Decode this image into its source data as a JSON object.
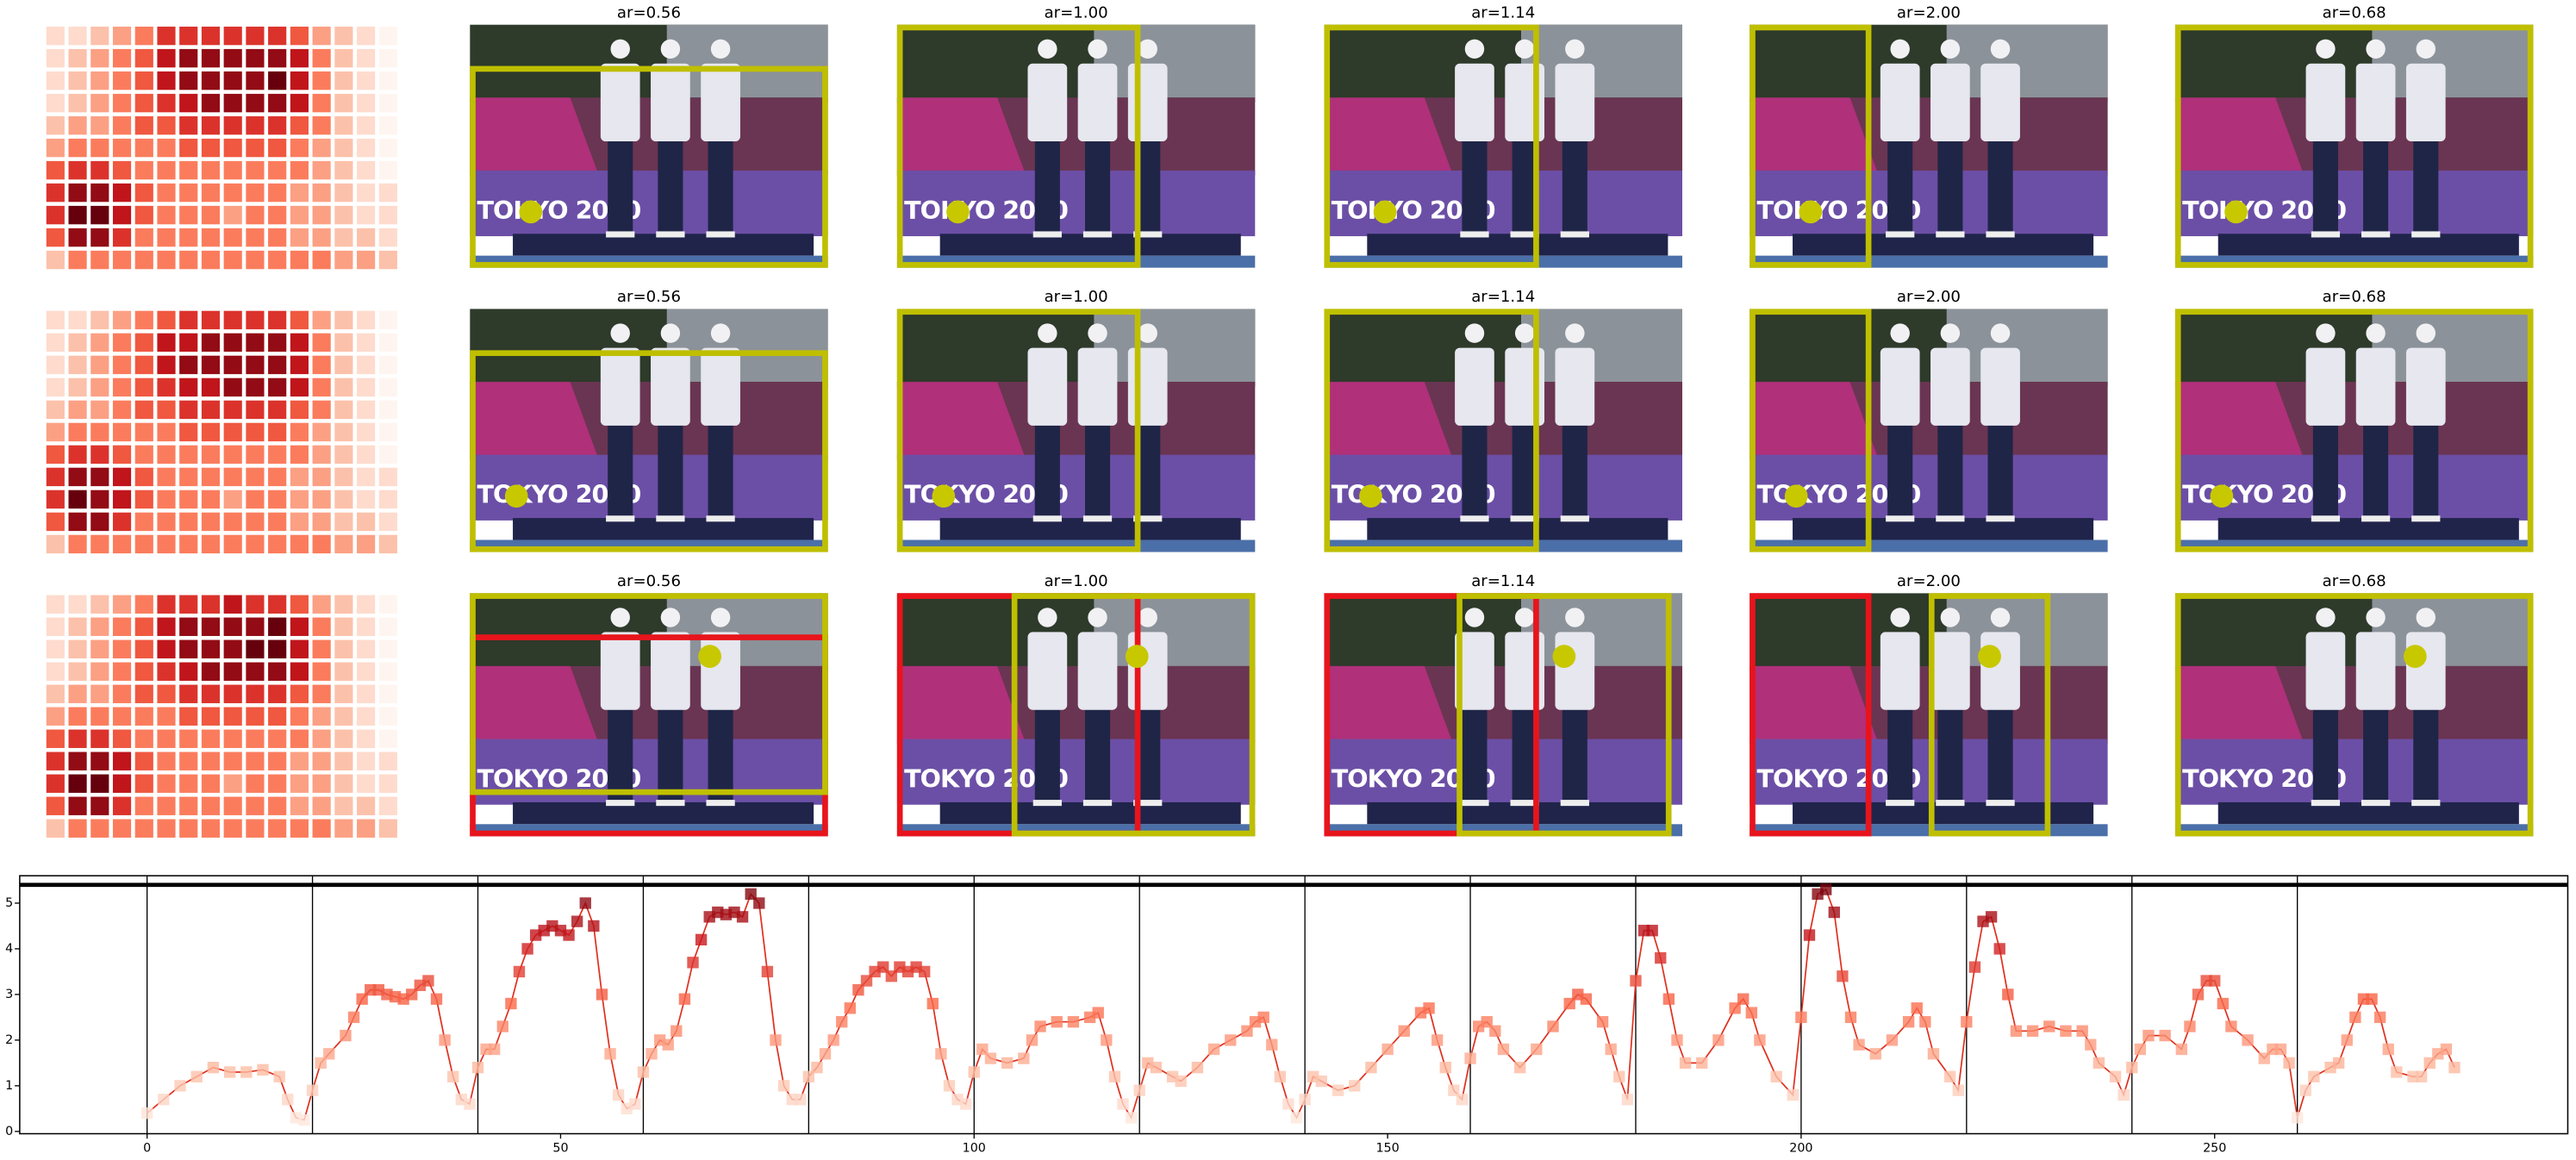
{
  "panel_rows": [
    {
      "titles": [
        "ar=0.56",
        "ar=1.00",
        "ar=1.14",
        "ar=2.00",
        "ar=0.68"
      ]
    },
    {
      "titles": [
        "ar=0.56",
        "ar=1.00",
        "ar=1.14",
        "ar=2.00",
        "ar=0.68"
      ]
    },
    {
      "titles": [
        "ar=0.56",
        "ar=1.00",
        "ar=1.14",
        "ar=2.00",
        "ar=0.68"
      ]
    }
  ],
  "photo_text": "TOKYO 2020",
  "heat_range": [
    0,
    9
  ],
  "heatmaps": [
    [
      [
        1,
        1,
        2,
        3,
        4,
        6,
        6,
        6,
        6,
        6,
        6,
        5,
        3,
        2,
        1,
        0
      ],
      [
        1,
        2,
        3,
        4,
        5,
        7,
        8,
        8,
        8,
        8,
        8,
        7,
        4,
        2,
        1,
        0
      ],
      [
        1,
        2,
        3,
        4,
        5,
        7,
        8,
        8,
        8,
        8,
        9,
        7,
        4,
        2,
        1,
        0
      ],
      [
        1,
        2,
        3,
        4,
        5,
        6,
        7,
        8,
        8,
        8,
        8,
        7,
        4,
        2,
        1,
        0
      ],
      [
        2,
        3,
        3,
        4,
        5,
        5,
        6,
        6,
        6,
        6,
        6,
        5,
        4,
        2,
        1,
        0
      ],
      [
        3,
        4,
        4,
        4,
        4,
        4,
        5,
        5,
        5,
        5,
        5,
        4,
        3,
        2,
        1,
        0
      ],
      [
        5,
        6,
        6,
        5,
        4,
        4,
        4,
        4,
        4,
        4,
        4,
        4,
        3,
        2,
        1,
        0
      ],
      [
        6,
        8,
        8,
        7,
        5,
        4,
        4,
        4,
        4,
        4,
        4,
        3,
        3,
        2,
        1,
        1
      ],
      [
        6,
        9,
        9,
        7,
        5,
        4,
        4,
        4,
        3,
        4,
        4,
        3,
        3,
        2,
        1,
        1
      ],
      [
        5,
        8,
        8,
        6,
        4,
        4,
        4,
        4,
        4,
        4,
        4,
        3,
        3,
        2,
        2,
        1
      ],
      [
        2,
        4,
        4,
        4,
        4,
        4,
        4,
        4,
        4,
        4,
        4,
        4,
        4,
        3,
        3,
        2
      ]
    ],
    [
      [
        1,
        1,
        2,
        3,
        4,
        5,
        6,
        6,
        6,
        6,
        6,
        5,
        3,
        2,
        1,
        0
      ],
      [
        1,
        2,
        3,
        4,
        5,
        7,
        7,
        8,
        8,
        8,
        8,
        7,
        4,
        2,
        1,
        0
      ],
      [
        1,
        2,
        3,
        4,
        5,
        7,
        8,
        8,
        8,
        8,
        8,
        7,
        4,
        2,
        1,
        0
      ],
      [
        1,
        2,
        3,
        4,
        5,
        6,
        7,
        7,
        8,
        8,
        8,
        7,
        4,
        2,
        1,
        0
      ],
      [
        2,
        3,
        3,
        4,
        5,
        5,
        6,
        6,
        6,
        6,
        6,
        5,
        4,
        2,
        1,
        0
      ],
      [
        3,
        4,
        4,
        4,
        4,
        4,
        5,
        5,
        5,
        5,
        5,
        4,
        3,
        2,
        1,
        0
      ],
      [
        5,
        6,
        6,
        5,
        4,
        4,
        4,
        4,
        4,
        4,
        4,
        4,
        3,
        2,
        1,
        0
      ],
      [
        6,
        8,
        8,
        7,
        5,
        4,
        4,
        4,
        4,
        4,
        4,
        3,
        3,
        2,
        1,
        1
      ],
      [
        6,
        9,
        8,
        7,
        5,
        4,
        4,
        4,
        3,
        4,
        4,
        3,
        3,
        2,
        1,
        1
      ],
      [
        5,
        8,
        8,
        6,
        4,
        4,
        4,
        4,
        4,
        4,
        4,
        3,
        3,
        2,
        2,
        1
      ],
      [
        2,
        4,
        4,
        4,
        4,
        4,
        4,
        4,
        4,
        4,
        4,
        4,
        4,
        3,
        3,
        2
      ]
    ],
    [
      [
        1,
        1,
        2,
        3,
        4,
        6,
        6,
        6,
        7,
        6,
        6,
        5,
        3,
        2,
        1,
        0
      ],
      [
        1,
        2,
        3,
        4,
        5,
        7,
        8,
        8,
        8,
        8,
        9,
        7,
        4,
        2,
        1,
        0
      ],
      [
        1,
        2,
        3,
        4,
        5,
        7,
        8,
        8,
        8,
        9,
        9,
        7,
        4,
        2,
        1,
        0
      ],
      [
        1,
        2,
        3,
        4,
        5,
        6,
        7,
        8,
        8,
        8,
        8,
        7,
        4,
        2,
        1,
        0
      ],
      [
        2,
        3,
        3,
        4,
        5,
        5,
        6,
        6,
        6,
        6,
        6,
        5,
        4,
        2,
        1,
        0
      ],
      [
        3,
        4,
        4,
        4,
        4,
        4,
        5,
        5,
        5,
        5,
        5,
        4,
        3,
        2,
        1,
        0
      ],
      [
        5,
        6,
        6,
        5,
        4,
        4,
        4,
        4,
        4,
        4,
        4,
        4,
        3,
        2,
        1,
        0
      ],
      [
        6,
        8,
        8,
        7,
        5,
        4,
        4,
        4,
        4,
        4,
        4,
        3,
        3,
        2,
        1,
        1
      ],
      [
        6,
        9,
        9,
        7,
        5,
        4,
        4,
        4,
        3,
        4,
        4,
        3,
        3,
        2,
        1,
        1
      ],
      [
        5,
        8,
        8,
        6,
        4,
        4,
        4,
        4,
        4,
        4,
        4,
        3,
        3,
        2,
        2,
        1
      ],
      [
        2,
        4,
        4,
        4,
        4,
        4,
        4,
        4,
        4,
        4,
        4,
        4,
        4,
        3,
        3,
        2
      ]
    ]
  ],
  "chart_data": {
    "type": "line",
    "color": "#e0301e",
    "colormap": [
      "#fff5f0",
      "#fcbba1",
      "#fb6a4a",
      "#cb181d",
      "#67000d"
    ],
    "x": [
      0,
      2,
      4,
      6,
      8,
      10,
      12,
      14,
      16,
      17,
      18,
      19,
      20,
      21,
      22,
      24,
      25,
      26,
      27,
      28,
      29,
      30,
      31,
      32,
      33,
      34,
      35,
      36,
      37,
      38,
      39,
      40,
      41,
      42,
      43,
      44,
      45,
      46,
      47,
      48,
      49,
      50,
      51,
      52,
      53,
      54,
      55,
      56,
      57,
      58,
      59,
      60,
      61,
      62,
      63,
      64,
      65,
      66,
      67,
      68,
      69,
      70,
      71,
      72,
      73,
      74,
      75,
      76,
      77,
      78,
      79,
      80,
      81,
      82,
      83,
      84,
      85,
      86,
      87,
      88,
      89,
      90,
      91,
      92,
      93,
      94,
      95,
      96,
      97,
      98,
      99,
      100,
      101,
      102,
      104,
      106,
      107,
      108,
      110,
      112,
      114,
      115,
      116,
      117,
      118,
      119,
      120,
      121,
      122,
      124,
      125,
      127,
      129,
      131,
      133,
      134,
      135,
      136,
      137,
      138,
      139,
      140,
      141,
      142,
      144,
      146,
      148,
      150,
      152,
      154,
      155,
      156,
      157,
      158,
      159,
      160,
      161,
      162,
      163,
      164,
      166,
      168,
      170,
      172,
      173,
      174,
      176,
      177,
      178,
      179,
      180,
      181,
      182,
      183,
      184,
      185,
      186,
      188,
      190,
      192,
      193,
      194,
      195,
      197,
      199,
      200,
      201,
      202,
      203,
      204,
      205,
      206,
      207,
      209,
      211,
      213,
      214,
      215,
      216,
      218,
      219,
      220,
      221,
      222,
      223,
      224,
      225,
      226,
      228,
      230,
      232,
      234,
      235,
      236,
      238,
      239,
      240,
      241,
      242,
      244,
      246,
      247,
      248,
      249,
      250,
      251,
      252,
      254,
      256,
      257,
      258,
      259,
      260,
      261,
      262,
      264,
      265,
      266,
      267,
      268,
      269,
      270,
      271,
      272,
      274,
      275,
      276,
      277,
      278,
      279
    ],
    "values": [
      0.4,
      0.7,
      1.0,
      1.2,
      1.4,
      1.3,
      1.3,
      1.35,
      1.2,
      0.7,
      0.3,
      0.25,
      0.9,
      1.5,
      1.7,
      2.1,
      2.5,
      2.9,
      3.1,
      3.1,
      3.0,
      2.95,
      2.9,
      3.0,
      3.2,
      3.3,
      2.9,
      2.0,
      1.2,
      0.7,
      0.6,
      1.4,
      1.8,
      1.8,
      2.3,
      2.8,
      3.5,
      4.0,
      4.3,
      4.4,
      4.5,
      4.4,
      4.3,
      4.6,
      5.0,
      4.5,
      3.0,
      1.7,
      0.8,
      0.5,
      0.6,
      1.3,
      1.7,
      2.0,
      1.9,
      2.2,
      2.9,
      3.7,
      4.2,
      4.7,
      4.8,
      4.75,
      4.8,
      4.7,
      5.2,
      5.0,
      3.5,
      2.0,
      1.0,
      0.7,
      0.7,
      1.2,
      1.4,
      1.7,
      2.0,
      2.4,
      2.7,
      3.1,
      3.3,
      3.5,
      3.6,
      3.4,
      3.6,
      3.5,
      3.6,
      3.5,
      2.8,
      1.7,
      1.0,
      0.7,
      0.6,
      1.3,
      1.8,
      1.6,
      1.5,
      1.6,
      2.0,
      2.3,
      2.4,
      2.4,
      2.5,
      2.6,
      2.0,
      1.2,
      0.6,
      0.3,
      0.9,
      1.5,
      1.4,
      1.2,
      1.1,
      1.4,
      1.8,
      2.0,
      2.2,
      2.4,
      2.5,
      1.9,
      1.2,
      0.6,
      0.3,
      0.7,
      1.2,
      1.1,
      0.9,
      1.0,
      1.4,
      1.8,
      2.2,
      2.6,
      2.7,
      2.0,
      1.4,
      0.9,
      0.7,
      1.6,
      2.3,
      2.4,
      2.2,
      1.8,
      1.4,
      1.8,
      2.3,
      2.8,
      3.0,
      2.9,
      2.4,
      1.8,
      1.2,
      0.7,
      3.3,
      4.4,
      4.4,
      3.8,
      2.9,
      2.0,
      1.5,
      1.5,
      2.0,
      2.7,
      2.9,
      2.6,
      2.0,
      1.2,
      0.8,
      2.5,
      4.3,
      5.2,
      5.3,
      4.8,
      3.4,
      2.5,
      1.9,
      1.7,
      2.0,
      2.4,
      2.7,
      2.4,
      1.7,
      1.2,
      0.9,
      2.4,
      3.6,
      4.6,
      4.7,
      4.0,
      3.0,
      2.2,
      2.2,
      2.3,
      2.2,
      2.2,
      1.9,
      1.5,
      1.2,
      0.8,
      1.4,
      1.8,
      2.1,
      2.1,
      1.8,
      2.3,
      3.0,
      3.3,
      3.3,
      2.8,
      2.3,
      2.0,
      1.6,
      1.8,
      1.8,
      1.5,
      0.3,
      0.9,
      1.2,
      1.4,
      1.5,
      2.0,
      2.5,
      2.9,
      2.9,
      2.5,
      1.8,
      1.3,
      1.2,
      1.2,
      1.5,
      1.7,
      1.8,
      1.4
    ],
    "xlim": [
      -15.4,
      292.7
    ],
    "ylim": [
      -0.05,
      5.6
    ],
    "xticks": [
      0,
      50,
      100,
      150,
      200,
      250
    ],
    "yticks": [
      0,
      1,
      2,
      3,
      4,
      5
    ],
    "vlines": [
      0,
      20,
      40,
      60,
      80,
      100,
      120,
      140,
      160,
      180,
      200,
      220,
      240,
      260
    ],
    "hline": 5.4
  }
}
